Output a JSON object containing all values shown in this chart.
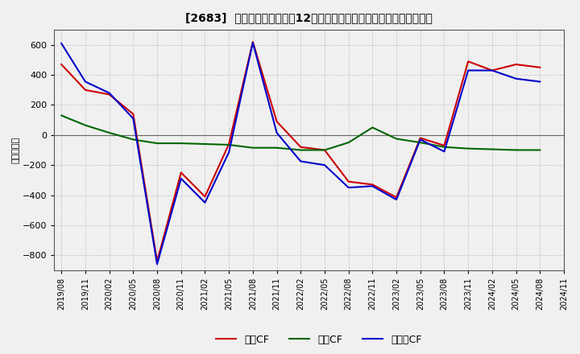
{
  "title": "[2683]  キャッシュフローの12か月移動合計の対前年同期増減額の推移",
  "ylabel": "（百万円）",
  "background_color": "#f0f0f0",
  "plot_background": "#f0f0f0",
  "grid_color": "#999999",
  "ylim": [
    -900,
    700
  ],
  "yticks": [
    -800,
    -600,
    -400,
    -200,
    0,
    200,
    400,
    600
  ],
  "x_labels": [
    "2019/08",
    "2019/11",
    "2020/02",
    "2020/05",
    "2020/08",
    "2020/11",
    "2021/02",
    "2021/05",
    "2021/08",
    "2021/11",
    "2022/02",
    "2022/05",
    "2022/08",
    "2022/11",
    "2023/02",
    "2023/05",
    "2023/08",
    "2023/11",
    "2024/02",
    "2024/05",
    "2024/08",
    "2024/11"
  ],
  "series_order": [
    "営業CF",
    "投資CF",
    "フリーCF"
  ],
  "series": {
    "営業CF": {
      "color": "#cc0000",
      "values": [
        470,
        300,
        270,
        140,
        -840,
        -250,
        -410,
        -60,
        620,
        90,
        -80,
        -100,
        -310,
        -330,
        -415,
        -20,
        -70,
        490,
        430,
        470,
        450,
        null
      ]
    },
    "投資CF": {
      "color": "#006600",
      "values": [
        130,
        65,
        15,
        -30,
        -55,
        -55,
        -60,
        -65,
        -85,
        -85,
        -100,
        -100,
        -50,
        50,
        -25,
        -50,
        -80,
        -90,
        -95,
        -100,
        -100,
        null
      ]
    },
    "フリCF": {
      "color": "#0000cc",
      "values": [
        610,
        355,
        280,
        110,
        -860,
        -290,
        -450,
        -115,
        615,
        15,
        -175,
        -200,
        -350,
        -340,
        -430,
        -30,
        -110,
        430,
        430,
        375,
        355,
        null
      ]
    }
  },
  "legend_labels": [
    "営業CF",
    "投資CF",
    "フリーCF"
  ],
  "legend_colors": [
    "#cc0000",
    "#006600",
    "#0000cc"
  ]
}
